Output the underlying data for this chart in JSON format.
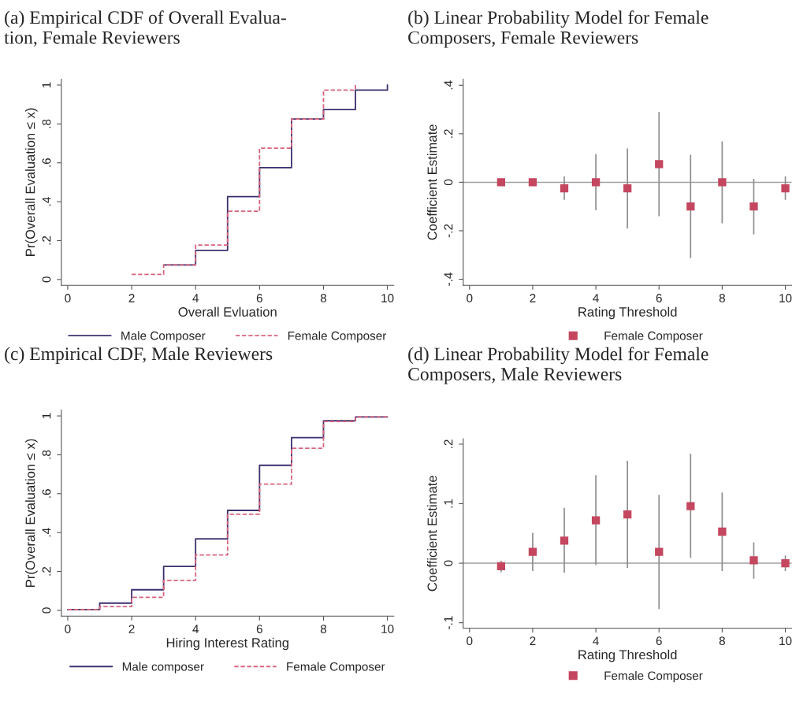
{
  "chart_data": [
    {
      "type": "step",
      "title": "(a) Empirical CDF of Overall Evalua-\ntion, Female Reviewers",
      "xlabel": "Overall Evluation",
      "ylabel": "Pr(Overall Evaluation ≤ x)",
      "xlim": [
        -0.2,
        10.2
      ],
      "ylim": [
        -0.03,
        1.03
      ],
      "xticks": [
        0,
        2,
        4,
        6,
        8,
        10
      ],
      "yticks": [
        0,
        {
          "value": 0.2,
          "label": ".2"
        },
        {
          "value": 0.4,
          "label": ".4"
        },
        {
          "value": 0.6,
          "label": ".6"
        },
        {
          "value": 0.8,
          "label": ".8"
        },
        1
      ],
      "legend": "bottom",
      "grid": false,
      "series": [
        {
          "name": "Male Composer",
          "color": "#3d2f6e",
          "line_style": "solid",
          "x": [
            3,
            4,
            5,
            6,
            7,
            8,
            9,
            10
          ],
          "values": [
            0.075,
            0.15,
            0.426,
            0.575,
            0.825,
            0.874,
            0.974,
            1.0
          ]
        },
        {
          "name": "Female Composer",
          "color": "#d9647e",
          "line_style": "dashed",
          "x": [
            2,
            3,
            4,
            5,
            6,
            7,
            8,
            9
          ],
          "values": [
            0.026,
            0.075,
            0.177,
            0.351,
            0.675,
            0.825,
            0.974,
            1.0
          ]
        }
      ]
    },
    {
      "type": "scatter",
      "title": "(b) Linear Probability Model for Female\nComposers, Female Reviewers",
      "xlabel": "Rating Threshold",
      "ylabel": "Coefficient Estimate",
      "xlim": [
        -0.2,
        10.2
      ],
      "ylim": [
        -0.425,
        0.425
      ],
      "xticks": [
        0,
        2,
        4,
        6,
        8,
        10
      ],
      "yticks": [
        {
          "value": -0.4,
          "label": "-.4"
        },
        {
          "value": -0.2,
          "label": "-.2"
        },
        0,
        {
          "value": 0.2,
          "label": ".2"
        },
        {
          "value": 0.4,
          "label": ".4"
        }
      ],
      "legend": "bottom",
      "grid": false,
      "marker": "square",
      "ref_lines": [
        {
          "axis": "y",
          "value": 0,
          "color": "#a0a0a0"
        }
      ],
      "series": [
        {
          "name": "Female Composer",
          "color": "#c4465f",
          "x": [
            1,
            2,
            3,
            4,
            5,
            6,
            7,
            8,
            9,
            10
          ],
          "values": [
            0,
            0,
            -0.025,
            0,
            -0.025,
            0.075,
            -0.1,
            0,
            -0.1,
            -0.025
          ],
          "errors": [
            null,
            null,
            [
              -0.073,
              0.024
            ],
            [
              -0.116,
              0.116
            ],
            [
              -0.19,
              0.139
            ],
            [
              -0.14,
              0.29
            ],
            [
              -0.313,
              0.113
            ],
            [
              -0.169,
              0.169
            ],
            [
              -0.215,
              0.014
            ],
            [
              -0.073,
              0.024
            ]
          ]
        }
      ]
    },
    {
      "type": "step",
      "title": "(c) Empirical CDF, Male Reviewers",
      "xlabel": "Hiring Interest Rating",
      "ylabel": "Pr(Overall Evaluation ≤ x)",
      "xlim": [
        -0.2,
        10.2
      ],
      "ylim": [
        -0.03,
        1.03
      ],
      "xticks": [
        0,
        2,
        4,
        6,
        8,
        10
      ],
      "yticks": [
        0,
        {
          "value": 0.2,
          "label": ".2"
        },
        {
          "value": 0.4,
          "label": ".4"
        },
        {
          "value": 0.6,
          "label": ".6"
        },
        {
          "value": 0.8,
          "label": ".8"
        },
        1
      ],
      "legend": "bottom",
      "grid": false,
      "series": [
        {
          "name": "Male composer",
          "color": "#3d2f6e",
          "line_style": "solid",
          "x": [
            0,
            1,
            2,
            3,
            4,
            5,
            6,
            7,
            8,
            9,
            10
          ],
          "values": [
            0.004,
            0.037,
            0.106,
            0.226,
            0.368,
            0.514,
            0.746,
            0.888,
            0.975,
            0.995,
            0.995
          ]
        },
        {
          "name": "Female Composer",
          "color": "#d9647e",
          "line_style": "dashed",
          "x": [
            0,
            1,
            2,
            3,
            4,
            5,
            6,
            7,
            8,
            9,
            10
          ],
          "values": [
            0.004,
            0.019,
            0.067,
            0.154,
            0.285,
            0.494,
            0.649,
            0.834,
            0.971,
            0.995,
            0.995
          ]
        }
      ]
    },
    {
      "type": "scatter",
      "title": "(d) Linear Probability Model for Female\nComposers, Male Reviewers",
      "xlabel": "Rating Threshold",
      "ylabel": "Coefficient Estimate",
      "xlim": [
        -0.2,
        10.2
      ],
      "ylim": [
        -0.109,
        0.209
      ],
      "xticks": [
        0,
        2,
        4,
        6,
        8,
        10
      ],
      "yticks": [
        {
          "value": -0.1,
          "label": "-.1"
        },
        0,
        {
          "value": 0.1,
          "label": ".1"
        },
        {
          "value": 0.2,
          "label": ".2"
        }
      ],
      "legend": "bottom",
      "grid": false,
      "marker": "square",
      "ref_lines": [
        {
          "axis": "y",
          "value": 0,
          "color": "#a0a0a0"
        }
      ],
      "series": [
        {
          "name": "Female Composer",
          "color": "#c4465f",
          "x": [
            1,
            2,
            3,
            4,
            5,
            6,
            7,
            8,
            9,
            10
          ],
          "values": [
            -0.005,
            0.019,
            0.038,
            0.072,
            0.082,
            0.019,
            0.096,
            0.053,
            0.005,
            0
          ],
          "errors": [
            [
              -0.015,
              0.004
            ],
            [
              -0.013,
              0.051
            ],
            [
              -0.016,
              0.093
            ],
            [
              -0.003,
              0.148
            ],
            [
              -0.008,
              0.172
            ],
            [
              -0.077,
              0.115
            ],
            [
              0.009,
              0.184
            ],
            [
              -0.013,
              0.119
            ],
            [
              -0.026,
              0.035
            ],
            [
              -0.013,
              0.013
            ]
          ]
        }
      ]
    }
  ]
}
